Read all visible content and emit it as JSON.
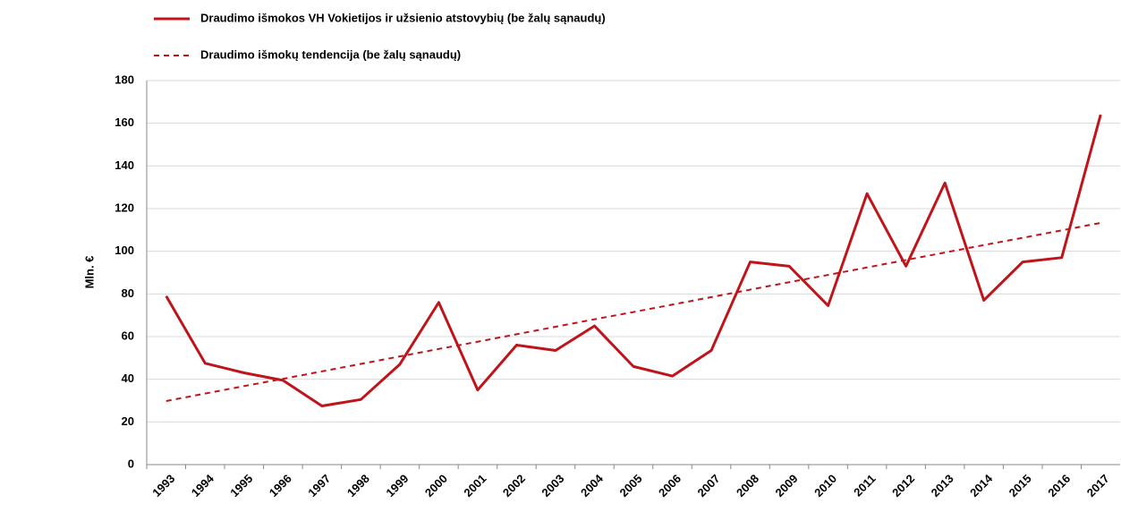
{
  "chart_data": {
    "type": "line",
    "ylabel": "Mln. €",
    "categories": [
      "1993",
      "1994",
      "1995",
      "1996",
      "1997",
      "1998",
      "1999",
      "2000",
      "2001",
      "2002",
      "2003",
      "2004",
      "2005",
      "2006",
      "2007",
      "2008",
      "2009",
      "2010",
      "2011",
      "2012",
      "2013",
      "2014",
      "2015",
      "2016",
      "2017"
    ],
    "series": [
      {
        "name": "Draudimo išmokos VH Vokietijos ir užsienio atstovybių (be žalų sąnaudų)",
        "color": "#c0141b",
        "dash": false,
        "values": [
          79,
          47.5,
          43,
          39.5,
          27.5,
          30.5,
          47,
          76,
          35,
          56,
          53.5,
          65,
          46,
          41.5,
          53.5,
          95,
          93,
          74.5,
          127,
          93,
          132,
          77,
          95,
          97,
          164
        ]
      },
      {
        "name": "Draudimo išmokų tendencija (be žalų sąnaudų)",
        "color": "#c0141b",
        "dash": true,
        "values": [
          29.8,
          33.3,
          36.8,
          40.2,
          43.7,
          47.2,
          50.7,
          54.2,
          57.6,
          61.1,
          64.6,
          68.1,
          71.5,
          75.0,
          78.5,
          82.0,
          85.5,
          88.9,
          92.4,
          95.9,
          99.4,
          102.9,
          106.3,
          109.8,
          113.3
        ]
      }
    ],
    "ylim": [
      0,
      180
    ],
    "yticks": [
      0,
      20,
      40,
      60,
      80,
      100,
      120,
      140,
      160,
      180
    ],
    "grid": true
  }
}
